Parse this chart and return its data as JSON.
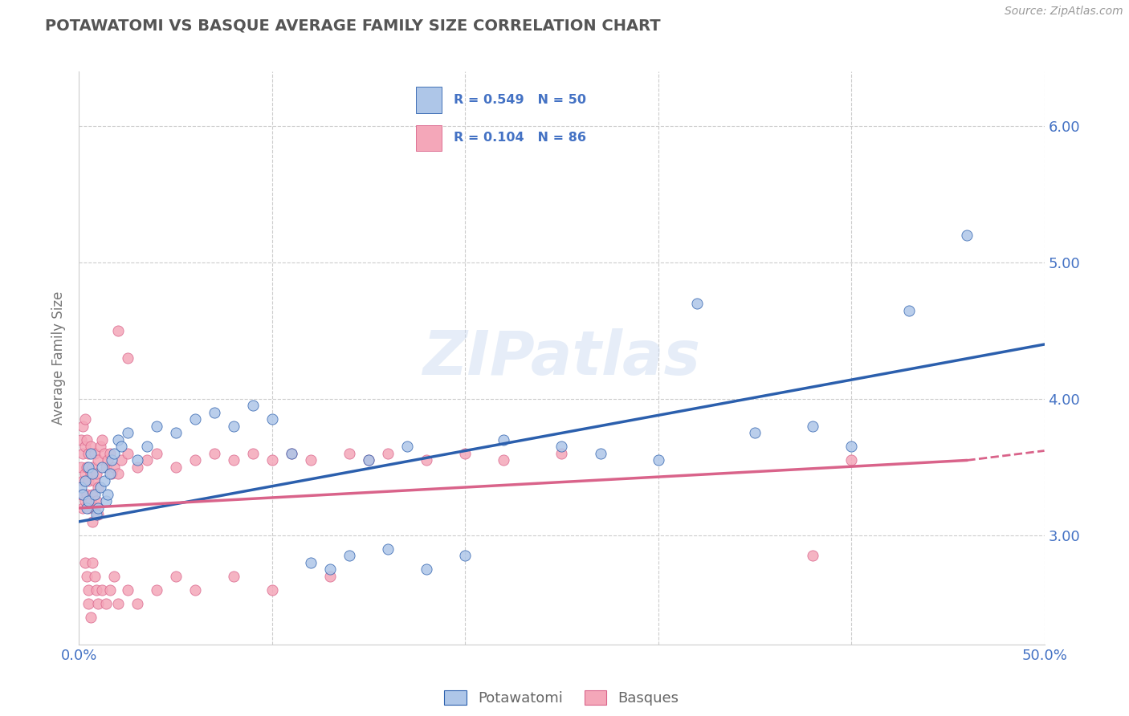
{
  "title": "POTAWATOMI VS BASQUE AVERAGE FAMILY SIZE CORRELATION CHART",
  "source_text": "Source: ZipAtlas.com",
  "ylabel": "Average Family Size",
  "xlim": [
    0.0,
    0.5
  ],
  "ylim": [
    2.2,
    6.4
  ],
  "background_color": "#ffffff",
  "grid_color": "#cccccc",
  "title_color": "#555555",
  "axis_color": "#4472c4",
  "potawatomi_color": "#aec6e8",
  "basque_color": "#f4a7b9",
  "potawatomi_line_color": "#2b5fad",
  "basque_line_color": "#d9638a",
  "legend_R1": "R = 0.549",
  "legend_N1": "N = 50",
  "legend_R2": "R = 0.104",
  "legend_N2": "N = 86",
  "potawatomi_label": "Potawatomi",
  "basque_label": "Basques",
  "watermark": "ZIPatlas",
  "pot_line_x0": 0.0,
  "pot_line_y0": 3.1,
  "pot_line_x1": 0.5,
  "pot_line_y1": 4.4,
  "bas_line_x0": 0.0,
  "bas_line_y0": 3.2,
  "bas_line_solid_x1": 0.46,
  "bas_line_solid_y1": 3.55,
  "bas_line_dash_x1": 0.5,
  "bas_line_dash_y1": 3.62,
  "potawatomi_x": [
    0.001,
    0.002,
    0.003,
    0.004,
    0.005,
    0.005,
    0.006,
    0.007,
    0.008,
    0.009,
    0.01,
    0.011,
    0.012,
    0.013,
    0.014,
    0.015,
    0.016,
    0.017,
    0.018,
    0.02,
    0.022,
    0.025,
    0.03,
    0.035,
    0.04,
    0.05,
    0.06,
    0.07,
    0.08,
    0.09,
    0.1,
    0.11,
    0.12,
    0.13,
    0.14,
    0.15,
    0.16,
    0.17,
    0.18,
    0.2,
    0.22,
    0.25,
    0.27,
    0.3,
    0.32,
    0.35,
    0.38,
    0.4,
    0.43,
    0.46
  ],
  "potawatomi_y": [
    3.35,
    3.3,
    3.4,
    3.2,
    3.25,
    3.5,
    3.6,
    3.45,
    3.3,
    3.15,
    3.2,
    3.35,
    3.5,
    3.4,
    3.25,
    3.3,
    3.45,
    3.55,
    3.6,
    3.7,
    3.65,
    3.75,
    3.55,
    3.65,
    3.8,
    3.75,
    3.85,
    3.9,
    3.8,
    3.95,
    3.85,
    3.6,
    2.8,
    2.75,
    2.85,
    3.55,
    2.9,
    3.65,
    2.75,
    2.85,
    3.7,
    3.65,
    3.6,
    3.55,
    4.7,
    3.75,
    3.8,
    3.65,
    4.65,
    5.2
  ],
  "basque_x": [
    0.001,
    0.001,
    0.001,
    0.002,
    0.002,
    0.002,
    0.002,
    0.003,
    0.003,
    0.003,
    0.003,
    0.004,
    0.004,
    0.004,
    0.005,
    0.005,
    0.005,
    0.006,
    0.006,
    0.006,
    0.007,
    0.007,
    0.007,
    0.008,
    0.008,
    0.008,
    0.009,
    0.009,
    0.01,
    0.01,
    0.01,
    0.011,
    0.012,
    0.013,
    0.014,
    0.015,
    0.016,
    0.017,
    0.018,
    0.02,
    0.022,
    0.025,
    0.03,
    0.035,
    0.04,
    0.05,
    0.06,
    0.07,
    0.08,
    0.09,
    0.1,
    0.11,
    0.12,
    0.14,
    0.15,
    0.16,
    0.18,
    0.2,
    0.22,
    0.25,
    0.003,
    0.004,
    0.005,
    0.005,
    0.006,
    0.007,
    0.008,
    0.009,
    0.01,
    0.012,
    0.014,
    0.016,
    0.018,
    0.02,
    0.025,
    0.03,
    0.04,
    0.05,
    0.06,
    0.08,
    0.1,
    0.13,
    0.02,
    0.025,
    0.38,
    0.4
  ],
  "basque_y": [
    3.3,
    3.5,
    3.7,
    3.2,
    3.4,
    3.6,
    3.8,
    3.25,
    3.45,
    3.65,
    3.85,
    3.3,
    3.5,
    3.7,
    3.2,
    3.4,
    3.6,
    3.25,
    3.45,
    3.65,
    3.1,
    3.3,
    3.5,
    3.2,
    3.4,
    3.6,
    3.25,
    3.45,
    3.15,
    3.35,
    3.55,
    3.65,
    3.7,
    3.6,
    3.5,
    3.55,
    3.6,
    3.45,
    3.5,
    3.45,
    3.55,
    3.6,
    3.5,
    3.55,
    3.6,
    3.5,
    3.55,
    3.6,
    3.55,
    3.6,
    3.55,
    3.6,
    3.55,
    3.6,
    3.55,
    3.6,
    3.55,
    3.6,
    3.55,
    3.6,
    2.8,
    2.7,
    2.6,
    2.5,
    2.4,
    2.8,
    2.7,
    2.6,
    2.5,
    2.6,
    2.5,
    2.6,
    2.7,
    2.5,
    2.6,
    2.5,
    2.6,
    2.7,
    2.6,
    2.7,
    2.6,
    2.7,
    4.5,
    4.3,
    2.85,
    3.55
  ]
}
